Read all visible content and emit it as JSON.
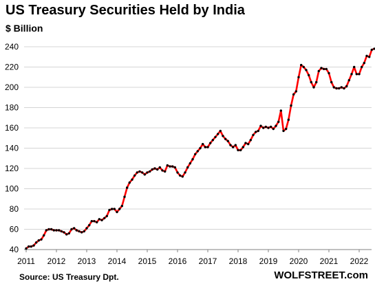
{
  "chart_data": {
    "type": "line",
    "title": "US Treasury Securities Held by India",
    "subtitle": "$ Billion",
    "source": "Source: US Treasury  Dpt.",
    "brand": "WOLFSTREET.com",
    "xlim": [
      2011.0,
      2022.6
    ],
    "ylim": [
      40,
      240
    ],
    "yticks": [
      40,
      60,
      80,
      100,
      120,
      140,
      160,
      180,
      200,
      220,
      240
    ],
    "xticks": [
      2011,
      2012,
      2013,
      2014,
      2015,
      2016,
      2017,
      2018,
      2019,
      2020,
      2021,
      2022
    ],
    "grid": "horizontal",
    "line_color": "#ff0000",
    "marker_color": "#000000",
    "series": [
      {
        "x": [
          2011.0,
          2011.083,
          2011.167,
          2011.25,
          2011.333,
          2011.417,
          2011.5,
          2011.583,
          2011.667,
          2011.75,
          2011.833,
          2011.917,
          2012.0,
          2012.083,
          2012.167,
          2012.25,
          2012.333,
          2012.417,
          2012.5,
          2012.583,
          2012.667,
          2012.75,
          2012.833,
          2012.917,
          2013.0,
          2013.083,
          2013.167,
          2013.25,
          2013.333,
          2013.417,
          2013.5,
          2013.583,
          2013.667,
          2013.75,
          2013.833,
          2013.917,
          2014.0,
          2014.083,
          2014.167,
          2014.25,
          2014.333,
          2014.417,
          2014.5,
          2014.583,
          2014.667,
          2014.75,
          2014.833,
          2014.917,
          2015.0,
          2015.083,
          2015.167,
          2015.25,
          2015.333,
          2015.417,
          2015.5,
          2015.583,
          2015.667,
          2015.75,
          2015.833,
          2015.917,
          2016.0,
          2016.083,
          2016.167,
          2016.25,
          2016.333,
          2016.417,
          2016.5,
          2016.583,
          2016.667,
          2016.75,
          2016.833,
          2016.917,
          2017.0,
          2017.083,
          2017.167,
          2017.25,
          2017.333,
          2017.417,
          2017.5,
          2017.583,
          2017.667,
          2017.75,
          2017.833,
          2017.917,
          2018.0,
          2018.083,
          2018.167,
          2018.25,
          2018.333,
          2018.417,
          2018.5,
          2018.583,
          2018.667,
          2018.75,
          2018.833,
          2018.917,
          2019.0,
          2019.083,
          2019.167,
          2019.25,
          2019.333,
          2019.417,
          2019.5,
          2019.583,
          2019.667,
          2019.75,
          2019.833,
          2019.917,
          2020.0,
          2020.083,
          2020.167,
          2020.25,
          2020.333,
          2020.417,
          2020.5,
          2020.583,
          2020.667,
          2020.75,
          2020.833,
          2020.917,
          2021.0,
          2021.083,
          2021.167,
          2021.25,
          2021.333,
          2021.417,
          2021.5,
          2021.583,
          2021.667,
          2021.75,
          2021.833,
          2021.917,
          2022.0,
          2022.083,
          2022.167,
          2022.25,
          2022.333,
          2022.417,
          2022.5
        ],
        "y": [
          41,
          43,
          43,
          44,
          47,
          49,
          50,
          54,
          59,
          60,
          60,
          59,
          59,
          59,
          58,
          57,
          55,
          56,
          60,
          61,
          59,
          58,
          57,
          58,
          61,
          64,
          68,
          68,
          67,
          70,
          69,
          71,
          73,
          79,
          80,
          80,
          77,
          80,
          83,
          92,
          101,
          106,
          109,
          113,
          116,
          117,
          116,
          114,
          116,
          117,
          119,
          120,
          119,
          121,
          118,
          117,
          123,
          122,
          122,
          121,
          116,
          113,
          112,
          116,
          121,
          125,
          129,
          134,
          137,
          140,
          144,
          141,
          141,
          145,
          148,
          151,
          154,
          157,
          152,
          149,
          147,
          143,
          141,
          143,
          138,
          138,
          141,
          145,
          144,
          148,
          153,
          156,
          157,
          162,
          160,
          161,
          160,
          161,
          159,
          162,
          166,
          177,
          157,
          159,
          168,
          182,
          193,
          196,
          210,
          222,
          220,
          217,
          212,
          205,
          200,
          205,
          216,
          219,
          218,
          218,
          214,
          205,
          200,
          199,
          199,
          200,
          199,
          201,
          207,
          213,
          220,
          213,
          213,
          220,
          224,
          231,
          230,
          237,
          238
        ]
      }
    ]
  }
}
